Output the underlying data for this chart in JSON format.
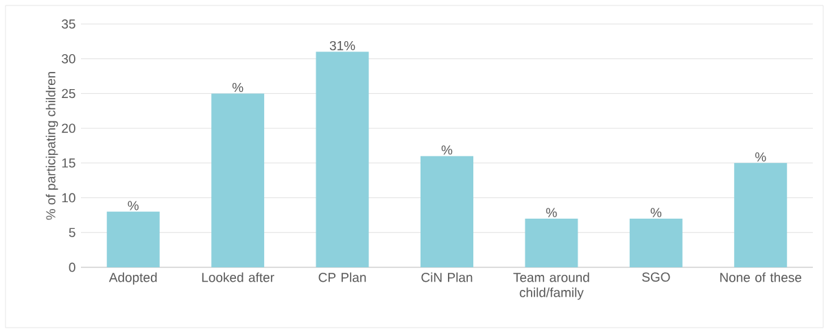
{
  "chart_data": {
    "type": "bar",
    "ylabel": "% of participating children",
    "categories": [
      "Adopted",
      "Looked after",
      "CP Plan",
      "CiN Plan",
      "Team around child/family",
      "SGO",
      "None of these"
    ],
    "values": [
      8,
      25,
      31,
      16,
      7,
      7,
      15
    ],
    "value_labels": [
      "%",
      "%",
      "31%",
      "%",
      "%",
      "%",
      "%"
    ],
    "color": "#8dd0dc",
    "ylim": [
      0,
      35
    ],
    "yticks": [
      0,
      5,
      10,
      15,
      20,
      25,
      30,
      35
    ],
    "grid": "y"
  }
}
